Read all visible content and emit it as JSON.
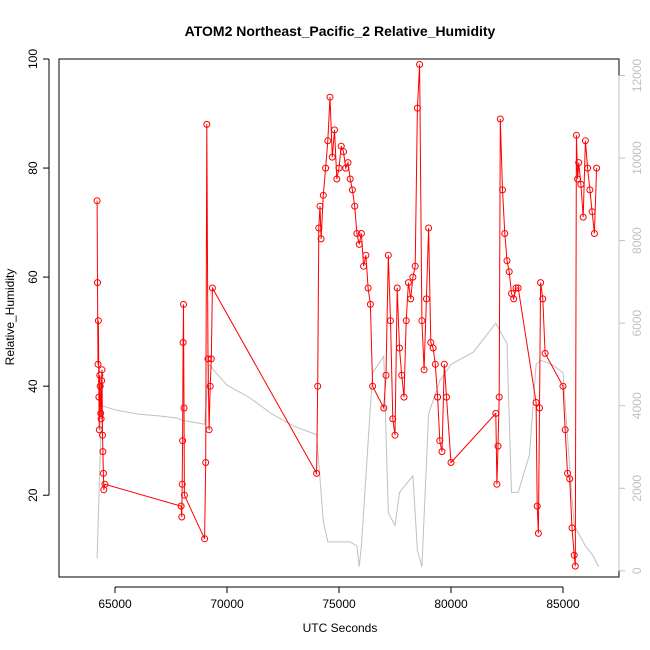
{
  "chart_data": {
    "type": "line",
    "title": "ATOM2 Northeast_Pacific_2 Relative_Humidity",
    "xlabel": "UTC Seconds",
    "ylabel": "Relative_Humidity",
    "xlim": [
      62500,
      87500
    ],
    "ylim": [
      5,
      100
    ],
    "y2lim": [
      -150,
      12400
    ],
    "x_ticks": [
      65000,
      70000,
      75000,
      80000,
      85000
    ],
    "y_ticks": [
      20,
      40,
      60,
      80,
      100
    ],
    "y2_ticks": [
      0,
      2000,
      4000,
      6000,
      8000,
      10000,
      12000
    ],
    "colors": {
      "primary": "#ff0000",
      "secondary": "#c0c0c0"
    },
    "series": [
      {
        "marker": "open-circle",
        "x": [
          64200,
          64220,
          64240,
          64260,
          64280,
          64300,
          64320,
          64340,
          64360,
          64380,
          64400,
          64420,
          64440,
          64460,
          64480,
          64500,
          64550,
          67950,
          67980,
          68000,
          68020,
          68040,
          68060,
          68080,
          68100,
          69000,
          69050,
          69100,
          69150,
          69200,
          69250,
          69300,
          69350,
          74000,
          74050,
          74100,
          74150,
          74200,
          74300,
          74400,
          74500,
          74600,
          74700,
          74800,
          74900,
          75000,
          75100,
          75200,
          75300,
          75400,
          75500,
          75600,
          75700,
          75800,
          75900,
          76000,
          76100,
          76200,
          76300,
          76400,
          76500,
          77000,
          77100,
          77200,
          77300,
          77400,
          77500,
          77600,
          77700,
          77800,
          77900,
          78000,
          78100,
          78200,
          78300,
          78400,
          78500,
          78600,
          78700,
          78800,
          78900,
          79000,
          79100,
          79200,
          79300,
          79400,
          79500,
          79600,
          79700,
          79800,
          80000,
          82000,
          82050,
          82100,
          82150,
          82200,
          82300,
          82400,
          82500,
          82600,
          82700,
          82800,
          82900,
          83000,
          83800,
          83850,
          83900,
          83950,
          84000,
          84100,
          84200,
          85000,
          85100,
          85200,
          85300,
          85400,
          85500,
          85550,
          85600,
          85650,
          85700,
          85800,
          85900,
          86000,
          86100,
          86200,
          86300,
          86400,
          86500
        ],
        "y": [
          74,
          59,
          44,
          52,
          38,
          32,
          42,
          40,
          35,
          34,
          41,
          43,
          31,
          28,
          24,
          21,
          22,
          18,
          16,
          22,
          30,
          48,
          55,
          36,
          20,
          12,
          26,
          88,
          45,
          32,
          40,
          45,
          58,
          24,
          40,
          69,
          73,
          67,
          75,
          80,
          85,
          93,
          82,
          87,
          78,
          80,
          84,
          83,
          80,
          81,
          78,
          76,
          73,
          68,
          66,
          68,
          62,
          64,
          58,
          55,
          40,
          36,
          42,
          64,
          52,
          34,
          31,
          58,
          47,
          42,
          38,
          52,
          59,
          56,
          60,
          62,
          91,
          99,
          52,
          43,
          56,
          69,
          48,
          47,
          44,
          38,
          30,
          28,
          44,
          38,
          26,
          35,
          22,
          29,
          38,
          89,
          76,
          68,
          63,
          61,
          57,
          56,
          58,
          58,
          37,
          18,
          13,
          36,
          59,
          56,
          46,
          40,
          32,
          24,
          23,
          14,
          9,
          7,
          86,
          78,
          81,
          77,
          71,
          85,
          80,
          76,
          72,
          68,
          80
        ]
      },
      {
        "x": [
          64200,
          64400,
          65000,
          66000,
          67000,
          67800,
          68000,
          68500,
          69000,
          69200,
          69500,
          70000,
          71000,
          72000,
          73000,
          74000,
          74300,
          74500,
          75000,
          75500,
          75800,
          75900,
          76000,
          76500,
          77000,
          77200,
          77500,
          77700,
          78000,
          78300,
          78500,
          78700,
          79000,
          79500,
          80000,
          81000,
          82000,
          82500,
          82700,
          83000,
          83500,
          83800,
          84000,
          84500,
          85000,
          85300,
          85500,
          85700,
          86000,
          86300,
          86600
        ],
        "y": [
          300,
          4000,
          3900,
          3800,
          3750,
          3700,
          3650,
          3600,
          3550,
          5000,
          4800,
          4500,
          4200,
          3800,
          3500,
          3300,
          1200,
          700,
          700,
          700,
          600,
          100,
          600,
          4800,
          5200,
          1400,
          1100,
          1900,
          2100,
          2300,
          500,
          100,
          3800,
          4600,
          5000,
          5300,
          6000,
          5500,
          1900,
          1900,
          2800,
          5000,
          5100,
          5000,
          4800,
          2500,
          1100,
          900,
          600,
          400,
          100
        ]
      }
    ]
  }
}
